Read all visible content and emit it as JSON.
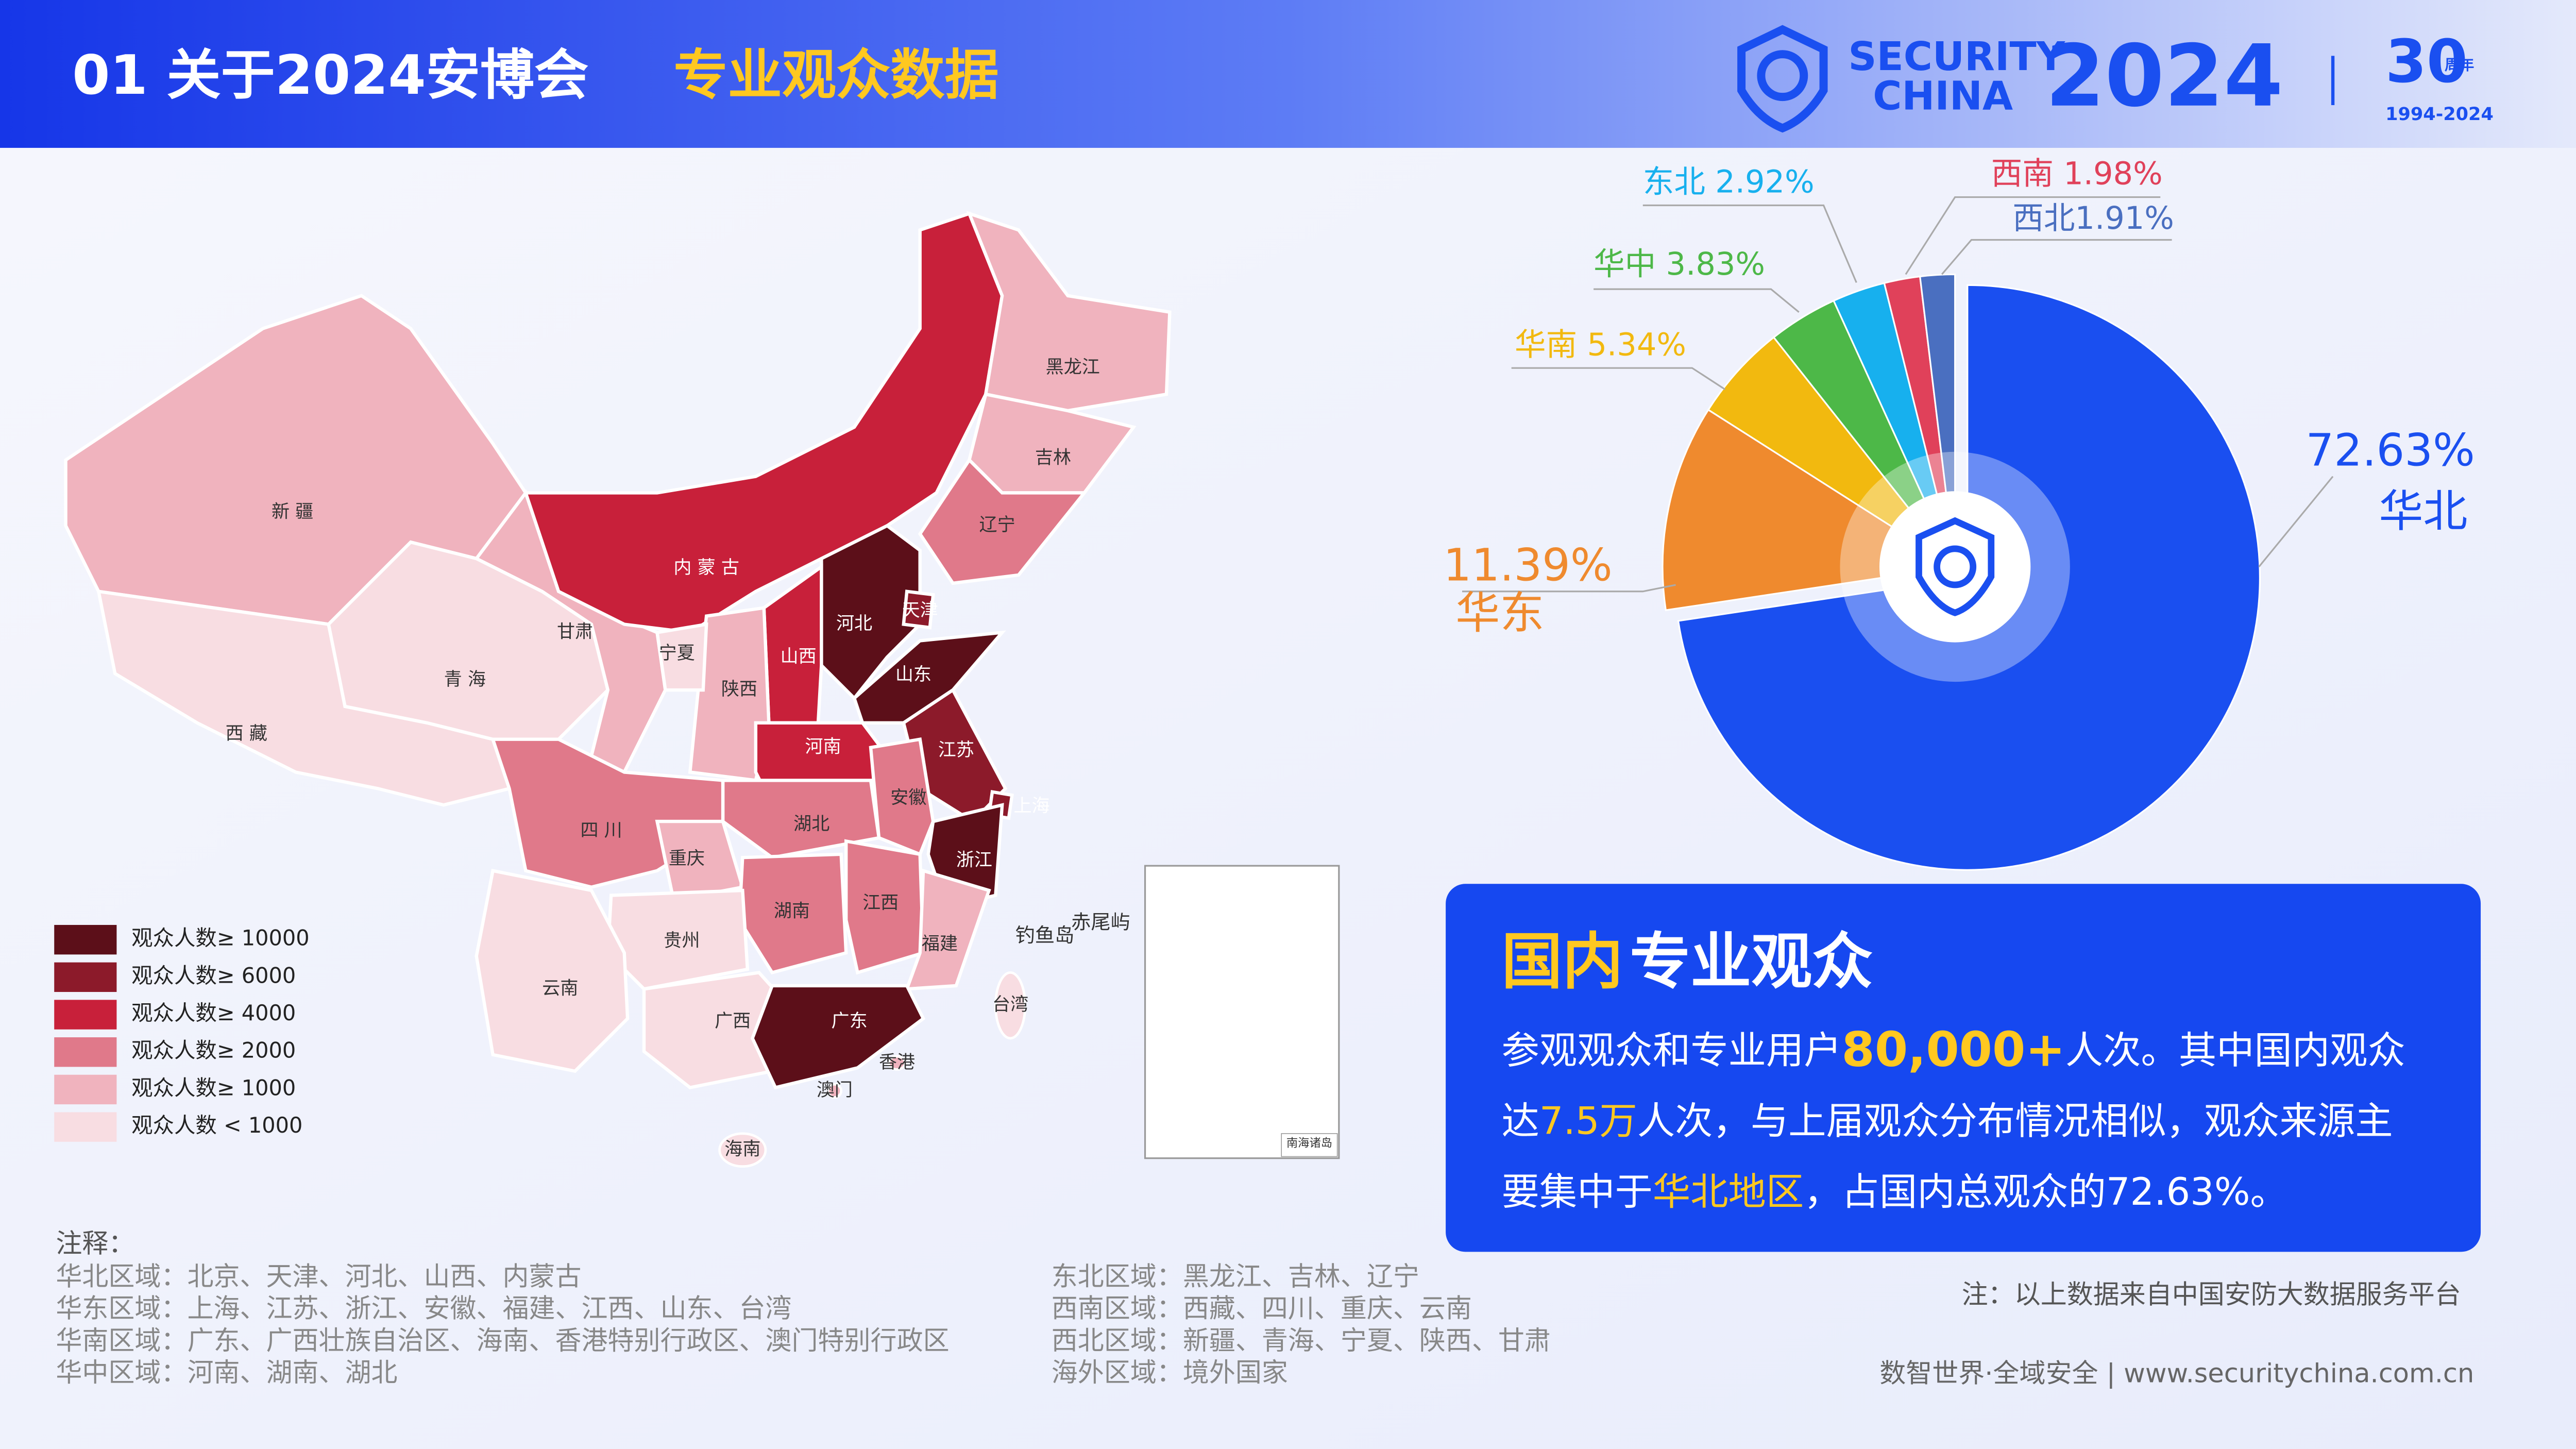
{
  "header": {
    "title": "01 关于2024安博会",
    "subtitle": "专业观众数据",
    "brand_line1": "SECURITY",
    "brand_line2": "CHINA",
    "brand_year": "2024",
    "anniversary": "30",
    "anniversary_badge": "周年",
    "anniversary_years": "1994-2024"
  },
  "chart_data": {
    "type": "pie",
    "categories": [
      "华北",
      "华东",
      "华南",
      "华中",
      "东北",
      "西南",
      "西北"
    ],
    "values": [
      72.63,
      11.39,
      5.34,
      3.83,
      2.92,
      1.98,
      1.91
    ],
    "value_labels": [
      "72.63%",
      "11.39%",
      "华南 5.34%",
      "华中 3.83%",
      "东北 2.92%",
      "西南 1.98%",
      "西北1.91%"
    ],
    "colors": [
      "#1a4ff0",
      "#ef8a2e",
      "#f2b90f",
      "#4db848",
      "#17b0ee",
      "#e0415a",
      "#4a6fc0"
    ]
  },
  "map": {
    "legend": [
      {
        "label": "观众人数≥ 10000",
        "color": "#5c0f19"
      },
      {
        "label": "观众人数≥ 6000",
        "color": "#8c1a2a"
      },
      {
        "label": "观众人数≥ 4000",
        "color": "#c8203a"
      },
      {
        "label": "观众人数≥ 2000",
        "color": "#e0798a"
      },
      {
        "label": "观众人数≥ 1000",
        "color": "#f0b3be"
      },
      {
        "label": "观众人数 < 1000",
        "color": "#f8dde2"
      }
    ],
    "provinces": [
      {
        "name": "新 疆",
        "color": "#f0b3be"
      },
      {
        "name": "西 藏",
        "color": "#f8dde2"
      },
      {
        "name": "青 海",
        "color": "#f8dde2"
      },
      {
        "name": "甘肃",
        "color": "#f0b3be"
      },
      {
        "name": "内 蒙 古",
        "color": "#c8203a"
      },
      {
        "name": "黑龙江",
        "color": "#f0b3be"
      },
      {
        "name": "吉林",
        "color": "#f0b3be"
      },
      {
        "name": "辽宁",
        "color": "#e0798a"
      },
      {
        "name": "河北",
        "color": "#5c0f19"
      },
      {
        "name": "天津",
        "color": "#8c1a2a"
      },
      {
        "name": "山西",
        "color": "#c8203a"
      },
      {
        "name": "陕西",
        "color": "#f0b3be"
      },
      {
        "name": "宁夏",
        "color": "#f8dde2"
      },
      {
        "name": "山东",
        "color": "#5c0f19"
      },
      {
        "name": "河南",
        "color": "#c8203a"
      },
      {
        "name": "江苏",
        "color": "#8c1a2a"
      },
      {
        "name": "安徽",
        "color": "#e0798a"
      },
      {
        "name": "上海",
        "color": "#8c1a2a"
      },
      {
        "name": "浙江",
        "color": "#5c0f19"
      },
      {
        "name": "湖北",
        "color": "#e0798a"
      },
      {
        "name": "四 川",
        "color": "#e0798a"
      },
      {
        "name": "重庆",
        "color": "#f0b3be"
      },
      {
        "name": "湖南",
        "color": "#e0798a"
      },
      {
        "name": "江西",
        "color": "#e0798a"
      },
      {
        "name": "福建",
        "color": "#f0b3be"
      },
      {
        "name": "贵州",
        "color": "#f8dde2"
      },
      {
        "name": "云南",
        "color": "#f8dde2"
      },
      {
        "name": "广西",
        "color": "#f8dde2"
      },
      {
        "name": "广东",
        "color": "#5c0f19"
      },
      {
        "name": "海南",
        "color": "#f8dde2"
      },
      {
        "name": "台湾",
        "color": "#f8dde2"
      },
      {
        "name": "香港",
        "color": "#f0b3be"
      },
      {
        "name": "澳门",
        "color": "#f0b3be"
      }
    ],
    "islands": [
      "钓鱼岛",
      "赤尾屿"
    ],
    "inset_label": "南海诸岛"
  },
  "textbox": {
    "title_highlight": "国内",
    "title_rest": "专业观众",
    "lines": [
      [
        {
          "text": "参观观众和专业用户",
          "color": "#ffffff"
        },
        {
          "text": "80,000+",
          "color": "#ffc820"
        },
        {
          "text": "人次。其中国内观众",
          "color": "#ffffff"
        }
      ],
      [
        {
          "text": "达",
          "color": "#ffffff"
        },
        {
          "text": "7.5万",
          "color": "#ffc820"
        },
        {
          "text": "人次，与上届观众分布情况相似，观众来源主",
          "color": "#ffffff"
        }
      ],
      [
        {
          "text": "要集中于",
          "color": "#ffffff"
        },
        {
          "text": "华北地区",
          "color": "#ffc820"
        },
        {
          "text": "，占国内总观众的72.63%。",
          "color": "#ffffff"
        }
      ]
    ]
  },
  "notes": {
    "title": "注释：",
    "left": [
      "华北区域：北京、天津、河北、山西、内蒙古",
      "华东区域：上海、江苏、浙江、安徽、福建、江西、山东、台湾",
      "华南区域：广东、广西壮族自治区、海南、香港特别行政区、澳门特别行政区",
      "华中区域：河南、湖南、湖北"
    ],
    "right": [
      "东北区域：黑龙江、吉林、辽宁",
      "西南区域：西藏、四川、重庆、云南",
      "西北区域：新疆、青海、宁夏、陕西、甘肃",
      "海外区域：境外国家"
    ]
  },
  "footer": {
    "source": "注：以上数据来自中国安防大数据服务平台",
    "slogan": "数智世界·全域安全 | www.securitychina.com.cn"
  }
}
